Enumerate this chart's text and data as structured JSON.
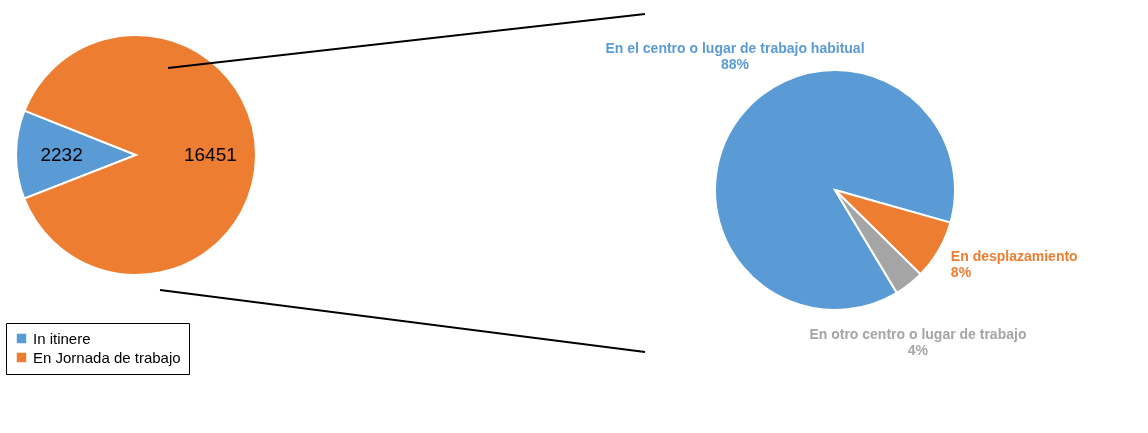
{
  "chart_data": [
    {
      "type": "pie",
      "categories": [
        "In itinere",
        "En Jornada de trabajo"
      ],
      "values": [
        2232,
        16451
      ],
      "colors": [
        "#5b9bd5",
        "#ed7d31"
      ],
      "data_labels": true,
      "legend": "bottom left"
    },
    {
      "type": "pie",
      "categories": [
        "En el centro o lugar de trabajo habitual",
        "En desplazamiento",
        "En otro centro o lugar de trabajo"
      ],
      "values": [
        88,
        8,
        4
      ],
      "colors": [
        "#5b9bd5",
        "#ed7d31",
        "#a5a5a5"
      ],
      "value_labels": [
        "88%",
        "8%",
        "4%"
      ]
    }
  ]
}
